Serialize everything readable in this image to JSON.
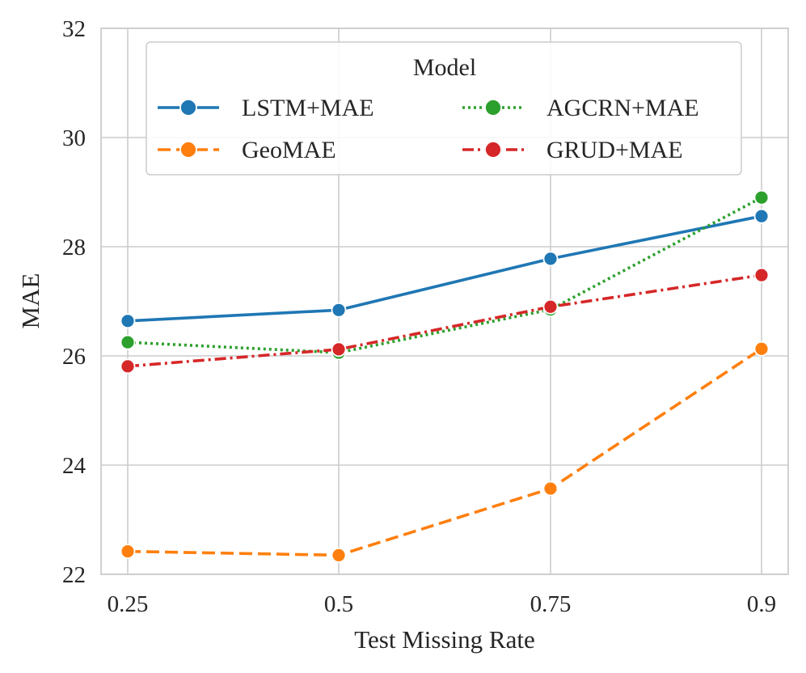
{
  "chart_data": {
    "type": "line",
    "xlabel": "Test Missing Rate",
    "ylabel": "MAE",
    "categories": [
      "0.25",
      "0.5",
      "0.75",
      "0.9"
    ],
    "ylim": [
      22,
      32
    ],
    "yticks": [
      "22",
      "24",
      "26",
      "28",
      "30",
      "32"
    ],
    "grid": true,
    "legend": {
      "title": "Model",
      "placement": "top-center",
      "columns": 2
    },
    "series": [
      {
        "name": "LSTM+MAE",
        "color": "#1f77b4",
        "dash": "solid",
        "values": [
          26.64,
          26.84,
          27.78,
          28.56
        ]
      },
      {
        "name": "GeoMAE",
        "color": "#ff7f0e",
        "dash": "dashed",
        "values": [
          22.42,
          22.35,
          23.57,
          26.13
        ]
      },
      {
        "name": "AGCRN+MAE",
        "color": "#2ca02c",
        "dash": "dotted",
        "values": [
          26.25,
          26.06,
          26.85,
          28.9
        ]
      },
      {
        "name": "GRUD+MAE",
        "color": "#d62728",
        "dash": "dashdot",
        "values": [
          25.81,
          26.12,
          26.9,
          27.48
        ]
      }
    ]
  }
}
